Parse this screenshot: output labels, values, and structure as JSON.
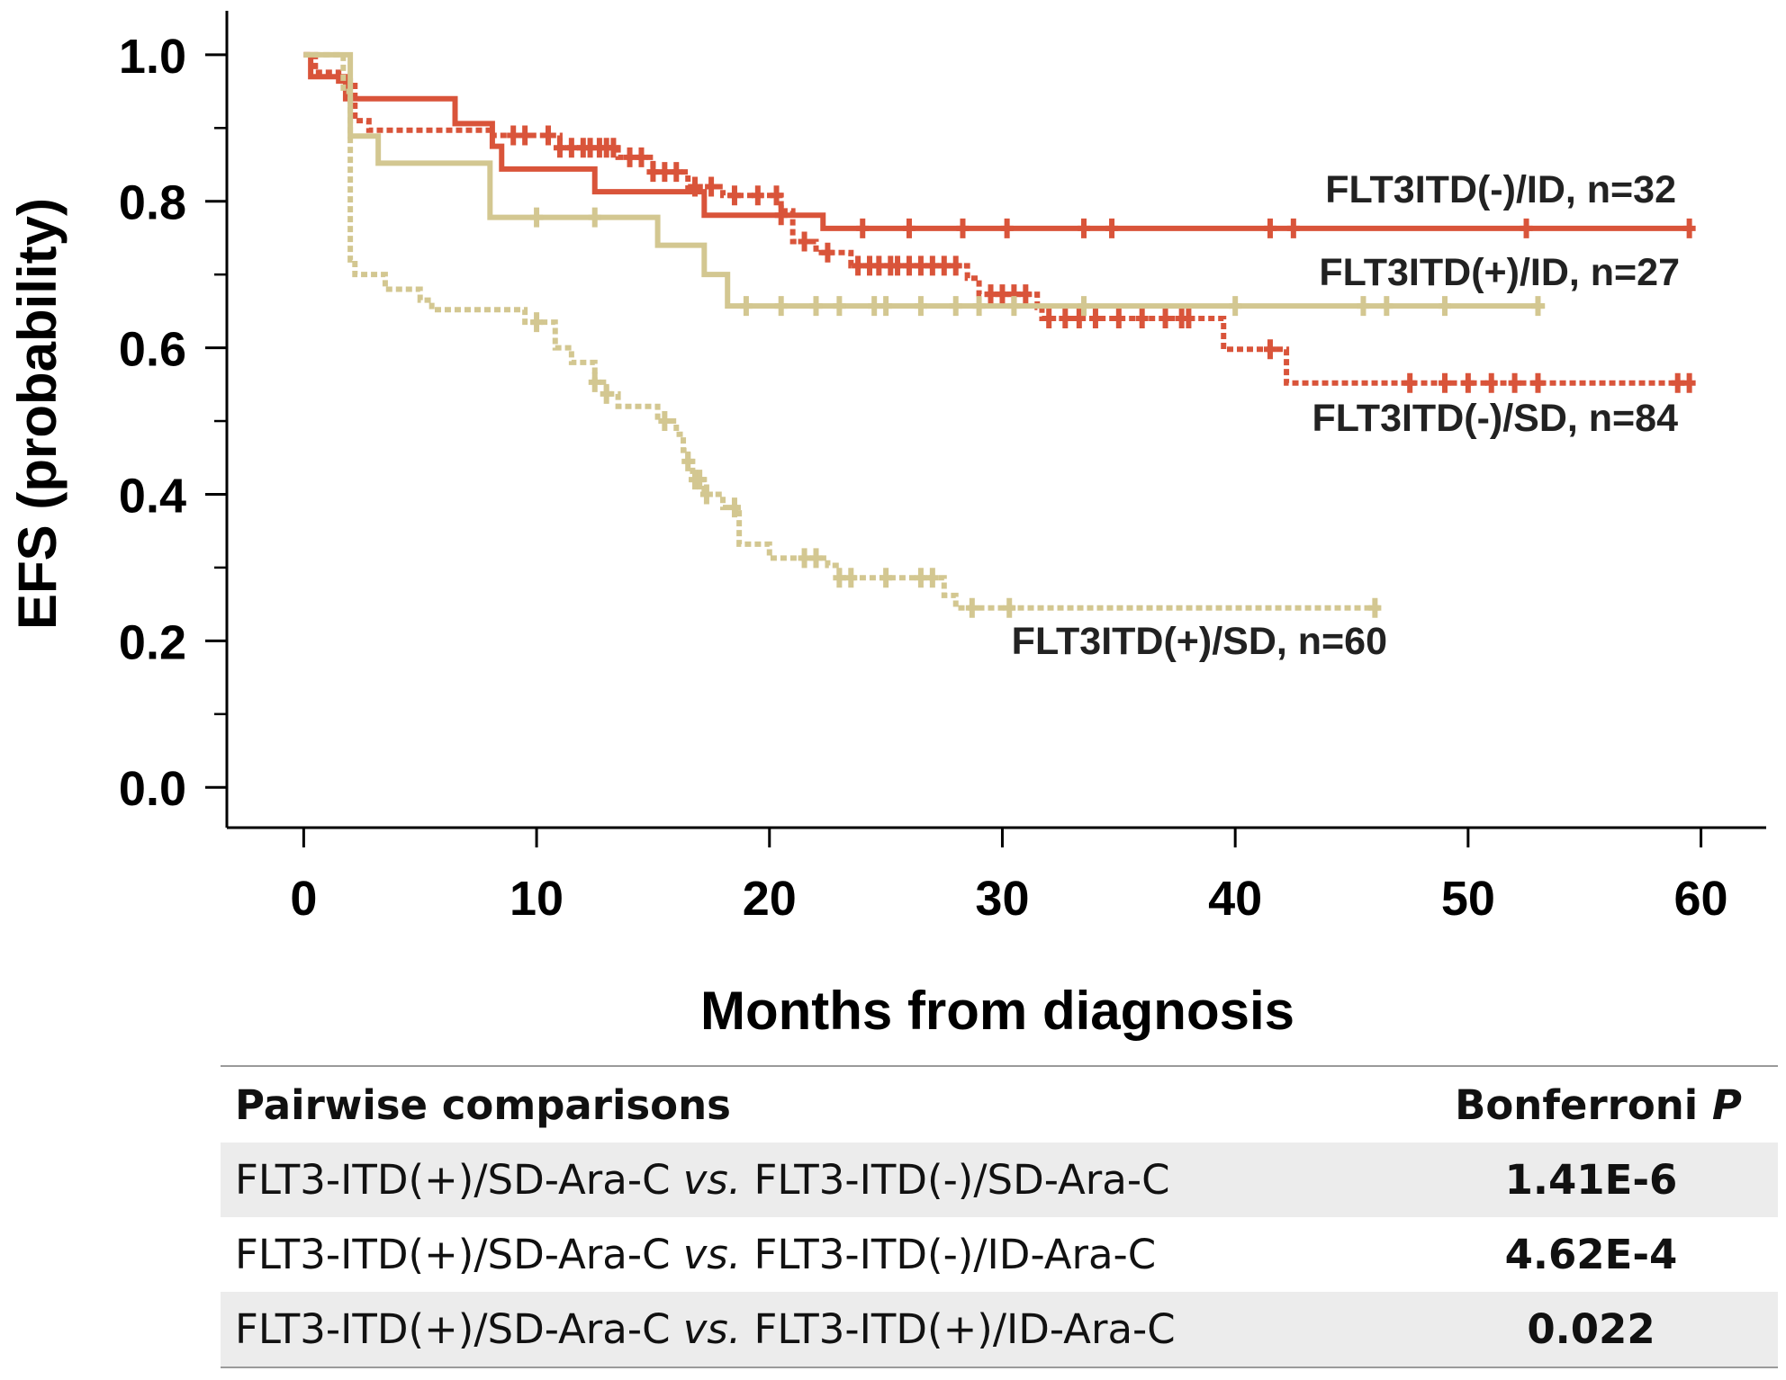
{
  "chart_data": {
    "type": "line",
    "subtype": "kaplan-meier step",
    "title": "",
    "xlabel": "Months from diagnosis",
    "ylabel": "EFS (probability)",
    "xlim": [
      -3.3,
      62.8
    ],
    "ylim": [
      -0.055,
      1.06
    ],
    "xticks": [
      0,
      10,
      20,
      30,
      40,
      50,
      60
    ],
    "xtick_labels": [
      "0",
      "10",
      "20",
      "30",
      "40",
      "50",
      "60"
    ],
    "yticks": [
      0.0,
      0.2,
      0.4,
      0.6,
      0.8,
      1.0
    ],
    "ytick_labels": [
      "0.0",
      "0.2",
      "0.4",
      "0.6",
      "0.8",
      "1.0"
    ],
    "yminor_ticks": [
      0.1,
      0.3,
      0.5,
      0.7,
      0.9
    ],
    "series": [
      {
        "name": "FLT3ITD(-)/ID, n=32",
        "color": "#d9543a",
        "dash": "solid",
        "steps": [
          [
            0,
            1.0
          ],
          [
            0.3,
            0.97
          ],
          [
            1.8,
            0.94
          ],
          [
            6.5,
            0.906
          ],
          [
            8.1,
            0.875
          ],
          [
            8.5,
            0.844
          ],
          [
            12.5,
            0.813
          ],
          [
            17.2,
            0.781
          ],
          [
            22.3,
            0.763
          ],
          [
            59.5,
            0.763
          ]
        ],
        "censors": [
          20.5,
          24,
          26,
          28.3,
          30.2,
          33.5,
          34.7,
          41.5,
          42.5,
          52.5,
          59.5
        ]
      },
      {
        "name": "FLT3ITD(-)/SD, n=84",
        "color": "#d9543a",
        "dash": "dotted",
        "steps": [
          [
            0,
            1.0
          ],
          [
            0.5,
            0.976
          ],
          [
            1.5,
            0.964
          ],
          [
            2.2,
            0.91
          ],
          [
            2.8,
            0.897
          ],
          [
            8,
            0.89
          ],
          [
            11,
            0.873
          ],
          [
            13.5,
            0.86
          ],
          [
            15,
            0.84
          ],
          [
            16.5,
            0.82
          ],
          [
            18,
            0.808
          ],
          [
            20.5,
            0.787
          ],
          [
            21,
            0.745
          ],
          [
            22,
            0.73
          ],
          [
            23.5,
            0.712
          ],
          [
            28.5,
            0.695
          ],
          [
            29,
            0.673
          ],
          [
            31.5,
            0.655
          ],
          [
            31.7,
            0.64
          ],
          [
            39.5,
            0.598
          ],
          [
            42.2,
            0.552
          ],
          [
            59.5,
            0.552
          ]
        ],
        "censors": [
          9,
          9.5,
          10.5,
          11,
          11.5,
          12,
          12.3,
          12.7,
          13,
          13.3,
          14,
          14.5,
          15,
          15.5,
          16,
          16.8,
          17.5,
          18.5,
          19.5,
          20.3,
          21.5,
          22.5,
          23.8,
          24.3,
          24.7,
          25.2,
          25.5,
          26,
          26.5,
          27,
          27.5,
          28,
          29.5,
          30,
          30.5,
          31,
          32,
          32.7,
          33.3,
          34,
          35,
          36,
          37,
          37.7,
          38,
          41.5,
          47.5,
          49,
          50,
          51,
          52,
          53,
          59,
          59.5
        ]
      },
      {
        "name": "FLT3ITD(+)/ID, n=27",
        "color": "#d3c791",
        "dash": "solid",
        "steps": [
          [
            0,
            1.0
          ],
          [
            2,
            0.889
          ],
          [
            3.2,
            0.852
          ],
          [
            8,
            0.778
          ],
          [
            15.2,
            0.74
          ],
          [
            17.2,
            0.7
          ],
          [
            18.2,
            0.657
          ],
          [
            53.3,
            0.657
          ]
        ],
        "censors": [
          10,
          12.5,
          19,
          20.5,
          22,
          23,
          24.5,
          25,
          26.5,
          28,
          29,
          30.5,
          33.5,
          40,
          45.5,
          46.5,
          49,
          53
        ]
      },
      {
        "name": "FLT3ITD(+)/SD, n=60",
        "color": "#d3c791",
        "dash": "dotted",
        "steps": [
          [
            0,
            1.0
          ],
          [
            1.7,
            0.95
          ],
          [
            2,
            0.72
          ],
          [
            2.2,
            0.7
          ],
          [
            3.5,
            0.68
          ],
          [
            5,
            0.665
          ],
          [
            5.5,
            0.652
          ],
          [
            9.5,
            0.635
          ],
          [
            10.8,
            0.6
          ],
          [
            11.5,
            0.58
          ],
          [
            12.5,
            0.553
          ],
          [
            13,
            0.537
          ],
          [
            13.5,
            0.52
          ],
          [
            15.2,
            0.5
          ],
          [
            16,
            0.482
          ],
          [
            16.3,
            0.46
          ],
          [
            16.5,
            0.445
          ],
          [
            16.7,
            0.42
          ],
          [
            17.2,
            0.4
          ],
          [
            18,
            0.382
          ],
          [
            18.7,
            0.332
          ],
          [
            20,
            0.313
          ],
          [
            22.5,
            0.303
          ],
          [
            23,
            0.286
          ],
          [
            27.5,
            0.262
          ],
          [
            28,
            0.245
          ],
          [
            46.2,
            0.245
          ]
        ],
        "censors": [
          10,
          12.5,
          13,
          15.5,
          16.5,
          16.8,
          17,
          17.3,
          18.5,
          21.5,
          22,
          23,
          23.5,
          25,
          26.5,
          27,
          28.7,
          30.3,
          46
        ]
      }
    ]
  },
  "series_labels": {
    "neg_id": "FLT3ITD(-)/ID, n=32",
    "pos_id": "FLT3ITD(+)/ID, n=27",
    "neg_sd": "FLT3ITD(-)/SD, n=84",
    "pos_sd": "FLT3ITD(+)/SD, n=60"
  },
  "table": {
    "header_comparison": "Pairwise comparisons",
    "header_p_prefix": "Bonferroni ",
    "header_p_italic": "P",
    "rows": [
      {
        "a": "FLT3-ITD(+)/SD-Ara-C ",
        "vs": "vs.",
        "b": " FLT3-ITD(-)/SD-Ara-C",
        "p": "1.41E-6"
      },
      {
        "a": "FLT3-ITD(+)/SD-Ara-C ",
        "vs": "vs.",
        "b": " FLT3-ITD(-)/ID-Ara-C",
        "p": "4.62E-4"
      },
      {
        "a": "FLT3-ITD(+)/SD-Ara-C ",
        "vs": "vs.",
        "b": " FLT3-ITD(+)/ID-Ara-C",
        "p": "0.022"
      }
    ]
  }
}
